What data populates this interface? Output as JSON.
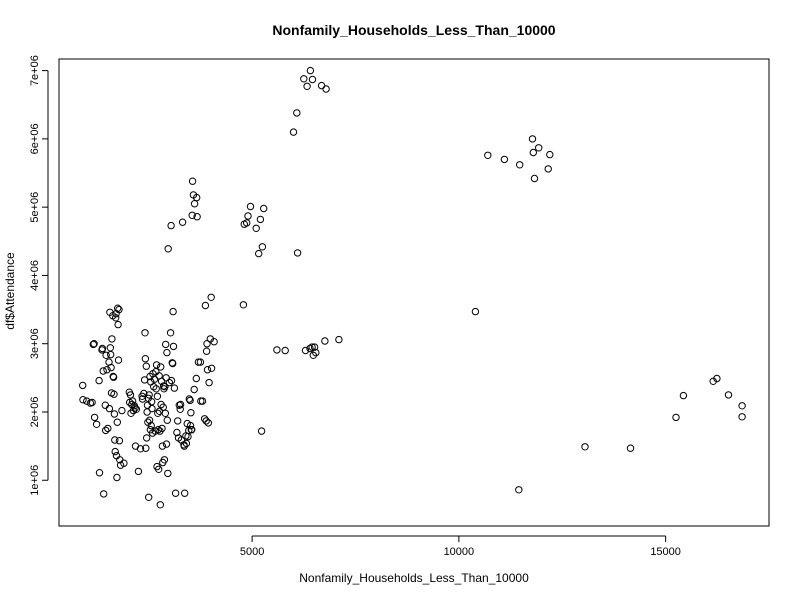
{
  "chart_data": {
    "type": "scatter",
    "title": "Nonfamily_Households_Less_Than_10000",
    "xlabel": "Nonfamily_Households_Less_Than_10000",
    "ylabel": "df$Attendance",
    "xlim": [
      330,
      17500
    ],
    "ylim": [
      330000,
      7170000
    ],
    "x_ticks": [
      5000,
      10000,
      15000
    ],
    "x_tick_labels": [
      "5000",
      "10000",
      "15000"
    ],
    "y_ticks": [
      1000000,
      2000000,
      3000000,
      4000000,
      5000000,
      6000000,
      7000000
    ],
    "y_tick_labels": [
      "1e+06",
      "2e+06",
      "3e+06",
      "4e+06",
      "5e+06",
      "6e+06",
      "7e+06"
    ],
    "grid": false,
    "points": [
      [
        903,
        2390000
      ],
      [
        910,
        2180000
      ],
      [
        1000,
        2160000
      ],
      [
        1090,
        2130000
      ],
      [
        1130,
        2140000
      ],
      [
        1160,
        2990000
      ],
      [
        1180,
        3000000
      ],
      [
        1190,
        1920000
      ],
      [
        1240,
        1820000
      ],
      [
        1300,
        2460000
      ],
      [
        1310,
        1110000
      ],
      [
        1370,
        2910000
      ],
      [
        1380,
        2930000
      ],
      [
        1400,
        2600000
      ],
      [
        1410,
        800000
      ],
      [
        1450,
        2100000
      ],
      [
        1460,
        1730000
      ],
      [
        1470,
        2830000
      ],
      [
        1490,
        2620000
      ],
      [
        1510,
        1760000
      ],
      [
        1540,
        2730000
      ],
      [
        1550,
        2050000
      ],
      [
        1560,
        3460000
      ],
      [
        1570,
        2940000
      ],
      [
        1580,
        2840000
      ],
      [
        1590,
        2650000
      ],
      [
        1600,
        2280000
      ],
      [
        1610,
        3070000
      ],
      [
        1630,
        3410000
      ],
      [
        1640,
        2520000
      ],
      [
        1650,
        2510000
      ],
      [
        1660,
        2260000
      ],
      [
        1670,
        1970000
      ],
      [
        1680,
        1590000
      ],
      [
        1690,
        1420000
      ],
      [
        1700,
        3380000
      ],
      [
        1710,
        3440000
      ],
      [
        1720,
        1360000
      ],
      [
        1730,
        1040000
      ],
      [
        1740,
        1850000
      ],
      [
        1750,
        3520000
      ],
      [
        1760,
        3280000
      ],
      [
        1770,
        2760000
      ],
      [
        1780,
        3500000
      ],
      [
        1790,
        1580000
      ],
      [
        1800,
        1300000
      ],
      [
        1820,
        1220000
      ],
      [
        1850,
        2020000
      ],
      [
        1900,
        1250000
      ],
      [
        2030,
        2290000
      ],
      [
        2040,
        2140000
      ],
      [
        2060,
        2250000
      ],
      [
        2070,
        1980000
      ],
      [
        2090,
        2110000
      ],
      [
        2110,
        2160000
      ],
      [
        2130,
        2020000
      ],
      [
        2150,
        2090000
      ],
      [
        2170,
        2060000
      ],
      [
        2180,
        1500000
      ],
      [
        2200,
        2040000
      ],
      [
        2250,
        1130000
      ],
      [
        2300,
        1460000
      ],
      [
        2340,
        2230000
      ],
      [
        2350,
        2190000
      ],
      [
        2380,
        2270000
      ],
      [
        2400,
        2470000
      ],
      [
        2410,
        3160000
      ],
      [
        2420,
        2780000
      ],
      [
        2430,
        1470000
      ],
      [
        2440,
        2670000
      ],
      [
        2450,
        1620000
      ],
      [
        2460,
        2000000
      ],
      [
        2470,
        2100000
      ],
      [
        2480,
        1850000
      ],
      [
        2490,
        2200000
      ],
      [
        2500,
        750000
      ],
      [
        2510,
        2250000
      ],
      [
        2520,
        1880000
      ],
      [
        2530,
        2520000
      ],
      [
        2540,
        1740000
      ],
      [
        2550,
        2440000
      ],
      [
        2560,
        1800000
      ],
      [
        2570,
        2150000
      ],
      [
        2580,
        2050000
      ],
      [
        2590,
        1690000
      ],
      [
        2600,
        2560000
      ],
      [
        2620,
        2370000
      ],
      [
        2640,
        2480000
      ],
      [
        2660,
        1720000
      ],
      [
        2670,
        2590000
      ],
      [
        2680,
        2340000
      ],
      [
        2690,
        2690000
      ],
      [
        2700,
        1200000
      ],
      [
        2710,
        2230000
      ],
      [
        2720,
        1980000
      ],
      [
        2730,
        1740000
      ],
      [
        2740,
        1160000
      ],
      [
        2750,
        2530000
      ],
      [
        2760,
        2010000
      ],
      [
        2770,
        1720000
      ],
      [
        2780,
        640000
      ],
      [
        2790,
        2660000
      ],
      [
        2800,
        2110000
      ],
      [
        2810,
        2450000
      ],
      [
        2820,
        1760000
      ],
      [
        2830,
        1500000
      ],
      [
        2840,
        1260000
      ],
      [
        2850,
        2070000
      ],
      [
        2860,
        2380000
      ],
      [
        2870,
        2340000
      ],
      [
        2880,
        1300000
      ],
      [
        2890,
        2370000
      ],
      [
        2900,
        1980000
      ],
      [
        2910,
        2990000
      ],
      [
        2920,
        2500000
      ],
      [
        2930,
        1530000
      ],
      [
        2940,
        2870000
      ],
      [
        2950,
        1880000
      ],
      [
        2960,
        1100000
      ],
      [
        2970,
        4390000
      ],
      [
        3000,
        2430000
      ],
      [
        3030,
        3160000
      ],
      [
        3040,
        4730000
      ],
      [
        3050,
        2460000
      ],
      [
        3070,
        2720000
      ],
      [
        3080,
        2710000
      ],
      [
        3090,
        3470000
      ],
      [
        3100,
        2960000
      ],
      [
        3120,
        2350000
      ],
      [
        3150,
        810000
      ],
      [
        3180,
        1700000
      ],
      [
        3200,
        1870000
      ],
      [
        3220,
        1620000
      ],
      [
        3240,
        2100000
      ],
      [
        3260,
        2040000
      ],
      [
        3270,
        2110000
      ],
      [
        3290,
        1590000
      ],
      [
        3320,
        4780000
      ],
      [
        3350,
        1520000
      ],
      [
        3360,
        1500000
      ],
      [
        3370,
        810000
      ],
      [
        3400,
        1650000
      ],
      [
        3410,
        1540000
      ],
      [
        3430,
        1830000
      ],
      [
        3450,
        1640000
      ],
      [
        3470,
        1730000
      ],
      [
        3480,
        2190000
      ],
      [
        3500,
        2170000
      ],
      [
        3510,
        1800000
      ],
      [
        3520,
        1990000
      ],
      [
        3530,
        1740000
      ],
      [
        3540,
        1740000
      ],
      [
        3550,
        4880000
      ],
      [
        3560,
        5380000
      ],
      [
        3580,
        5180000
      ],
      [
        3600,
        2330000
      ],
      [
        3610,
        5050000
      ],
      [
        3650,
        2490000
      ],
      [
        3660,
        5140000
      ],
      [
        3670,
        4860000
      ],
      [
        3700,
        2730000
      ],
      [
        3750,
        2730000
      ],
      [
        3760,
        2160000
      ],
      [
        3800,
        2160000
      ],
      [
        3850,
        1900000
      ],
      [
        3870,
        3560000
      ],
      [
        3890,
        1870000
      ],
      [
        3900,
        2890000
      ],
      [
        3910,
        3000000
      ],
      [
        3920,
        2620000
      ],
      [
        3940,
        1840000
      ],
      [
        3960,
        2430000
      ],
      [
        3990,
        3070000
      ],
      [
        4010,
        3680000
      ],
      [
        4020,
        2640000
      ],
      [
        4080,
        3030000
      ],
      [
        4790,
        3570000
      ],
      [
        4810,
        4750000
      ],
      [
        4870,
        4770000
      ],
      [
        4900,
        4870000
      ],
      [
        4960,
        5010000
      ],
      [
        5100,
        4690000
      ],
      [
        5160,
        4320000
      ],
      [
        5200,
        4820000
      ],
      [
        5230,
        1720000
      ],
      [
        5250,
        4420000
      ],
      [
        5280,
        4980000
      ],
      [
        5600,
        2910000
      ],
      [
        5800,
        2900000
      ],
      [
        6000,
        6100000
      ],
      [
        6080,
        6380000
      ],
      [
        6100,
        4330000
      ],
      [
        6250,
        6880000
      ],
      [
        6290,
        2900000
      ],
      [
        6330,
        6770000
      ],
      [
        6400,
        2930000
      ],
      [
        6410,
        7000000
      ],
      [
        6450,
        2950000
      ],
      [
        6460,
        6870000
      ],
      [
        6480,
        2830000
      ],
      [
        6510,
        2950000
      ],
      [
        6540,
        2870000
      ],
      [
        6680,
        6780000
      ],
      [
        6760,
        3040000
      ],
      [
        6790,
        6730000
      ],
      [
        7100,
        3060000
      ],
      [
        10400,
        3470000
      ],
      [
        10700,
        5760000
      ],
      [
        11100,
        5700000
      ],
      [
        11450,
        860000
      ],
      [
        11470,
        5620000
      ],
      [
        11780,
        6000000
      ],
      [
        11800,
        5800000
      ],
      [
        11830,
        5420000
      ],
      [
        11930,
        5870000
      ],
      [
        12160,
        5560000
      ],
      [
        12200,
        5770000
      ],
      [
        13050,
        1490000
      ],
      [
        14150,
        1470000
      ],
      [
        15250,
        1920000
      ],
      [
        15430,
        2240000
      ],
      [
        16150,
        2450000
      ],
      [
        16240,
        2490000
      ],
      [
        16520,
        2250000
      ],
      [
        16850,
        1930000
      ],
      [
        16850,
        2090000
      ]
    ]
  }
}
